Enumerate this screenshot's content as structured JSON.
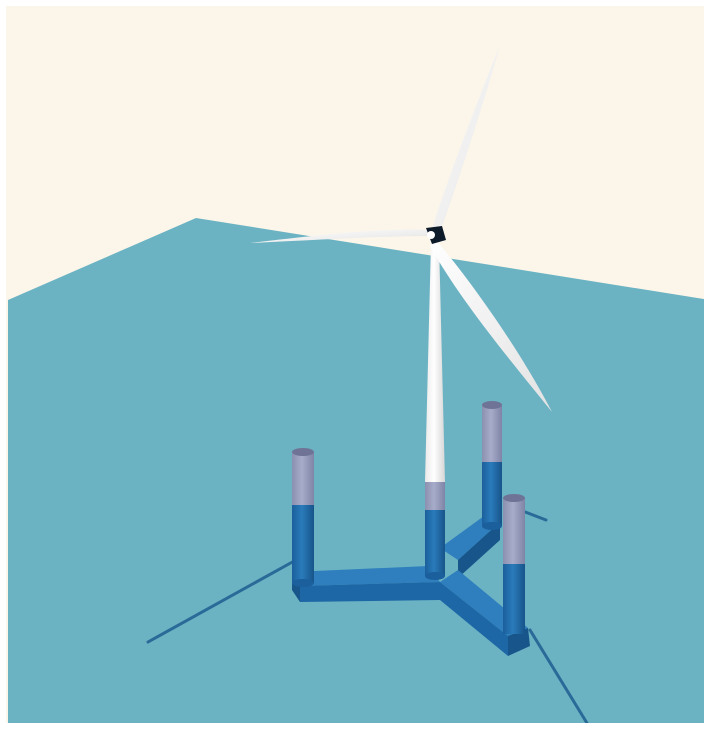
{
  "scene": {
    "colors": {
      "sky": "#fcf6ea",
      "sea": "#6bb3c3",
      "mooring_line": "#2a6a98",
      "hull_blue": "#1e67a6",
      "hull_blue_dark": "#17558b",
      "hull_blue_light": "#2f7fbe",
      "column_top": "#9da2c2",
      "column_top_dark": "#8a8fb1",
      "tower": "#ffffff",
      "tower_shade": "#dcdcdc",
      "nacelle": "#0d1a2a",
      "frame_border": "#ffffff"
    },
    "objects": {
      "turbine": "floating-wind-turbine",
      "blades": 3,
      "columns": 4,
      "mooring_lines": 3
    }
  }
}
